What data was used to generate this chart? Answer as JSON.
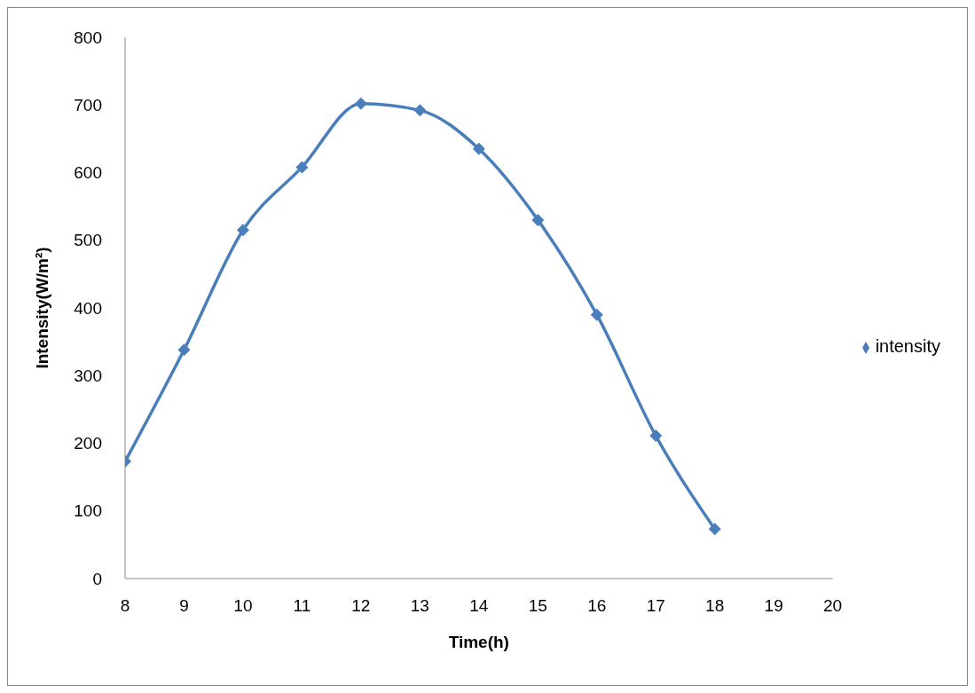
{
  "chart_data": {
    "type": "line",
    "xlabel": "Time(h)",
    "ylabel": "Intensity(W/m²)",
    "x": [
      8,
      9,
      10,
      11,
      12,
      13,
      14,
      15,
      16,
      17,
      18
    ],
    "series": [
      {
        "name": "intensity",
        "color": "#4a7ebb",
        "values": [
          173,
          338,
          515,
          608,
          702,
          692,
          635,
          530,
          390,
          211,
          73
        ]
      }
    ],
    "xlim": [
      8,
      20
    ],
    "xticks": [
      8,
      9,
      10,
      11,
      12,
      13,
      14,
      15,
      16,
      17,
      18,
      19,
      20
    ],
    "ylim": [
      0,
      800
    ],
    "yticks": [
      0,
      100,
      200,
      300,
      400,
      500,
      600,
      700,
      800
    ],
    "grid": false,
    "legend": "right",
    "marker": "diamond",
    "line_style": "solid"
  }
}
